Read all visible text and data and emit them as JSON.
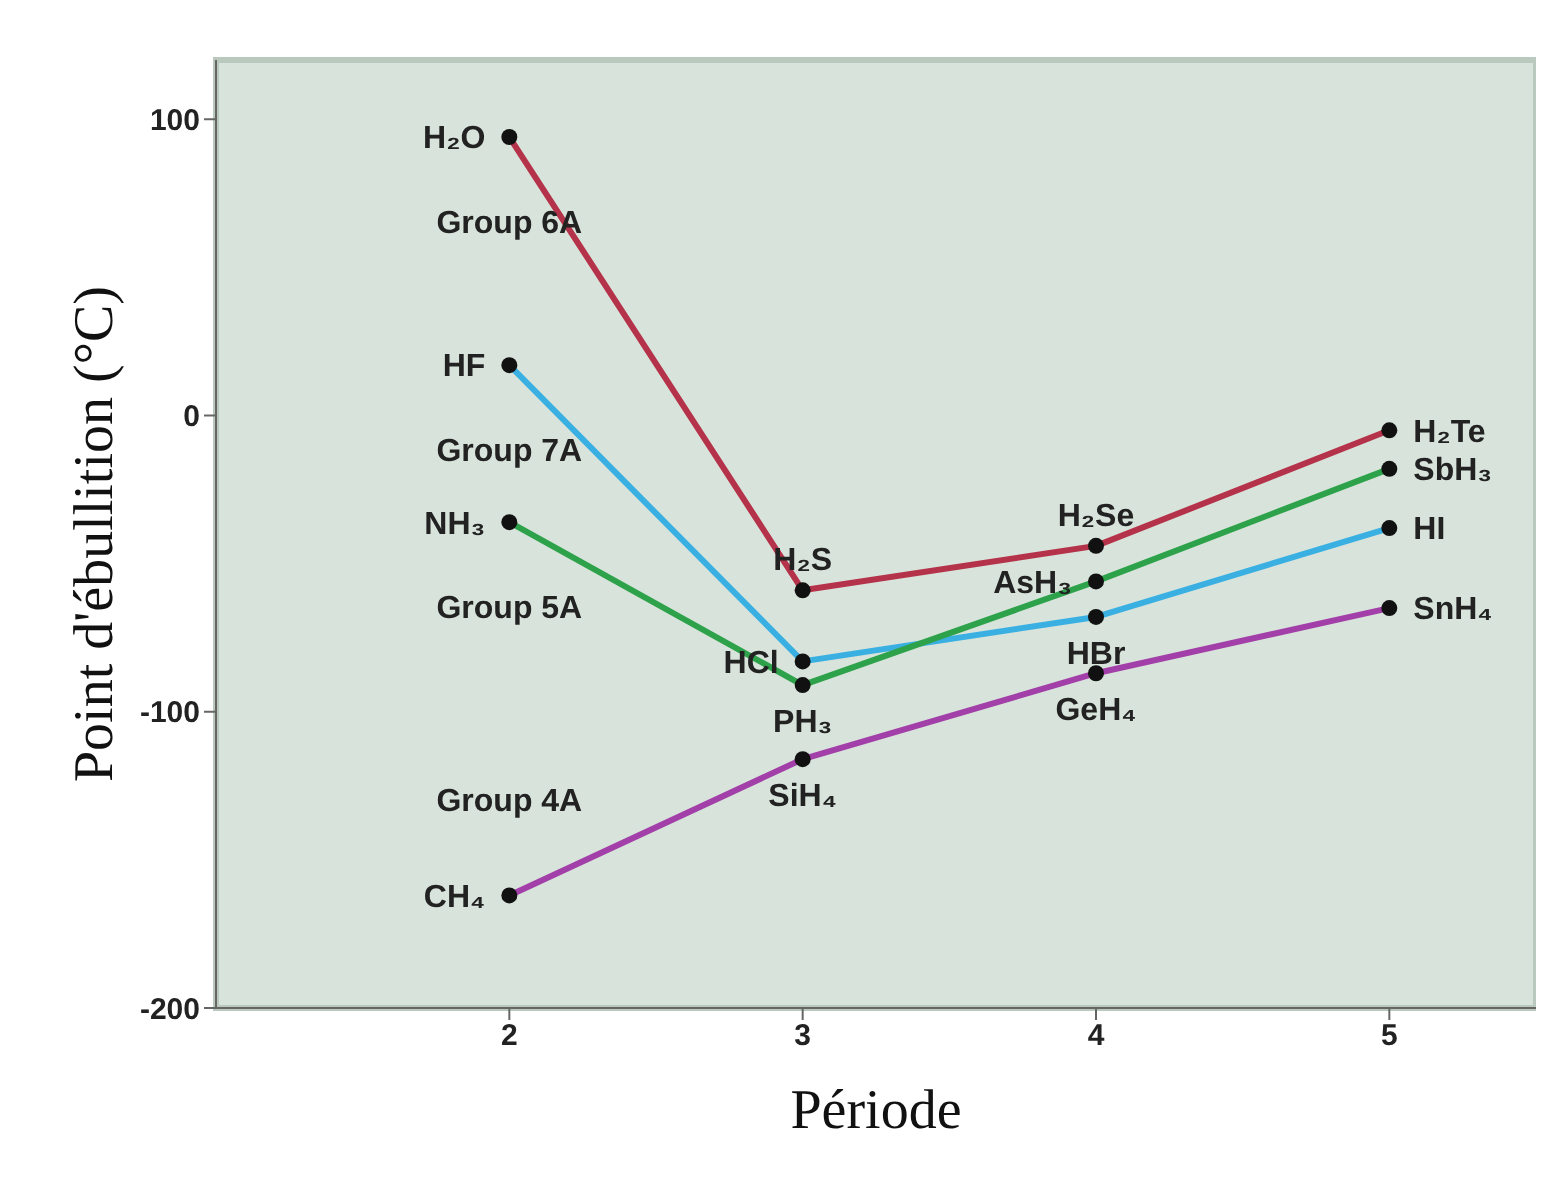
{
  "chart_data": {
    "type": "line",
    "xlabel": "Période",
    "ylabel": "Point d'ébullition (°C)",
    "xlim": [
      1,
      5.5
    ],
    "xticks": [
      2,
      3,
      4,
      5
    ],
    "ylim": [
      -200,
      120
    ],
    "yticks": [
      -200,
      -100,
      0,
      100
    ],
    "x": [
      2,
      3,
      4,
      5
    ],
    "marker": "circle",
    "legend": false,
    "series": [
      {
        "name": "Group 6A",
        "color": "#b5334a",
        "values": [
          94,
          -59,
          -44,
          -5
        ]
      },
      {
        "name": "Group 7A",
        "color": "#3ab0e2",
        "values": [
          17,
          -83,
          -68,
          -38
        ]
      },
      {
        "name": "Group 5A",
        "color": "#2ea24a",
        "values": [
          -36,
          -91,
          -56,
          -18
        ]
      },
      {
        "name": "Group 4A",
        "color": "#a23fa8",
        "values": [
          -162,
          -116,
          -87,
          -65
        ]
      }
    ],
    "annotations": [
      {
        "text": "H₂O",
        "x": 2,
        "y": 94
      },
      {
        "text": "HF",
        "x": 2,
        "y": 17
      },
      {
        "text": "NH₃",
        "x": 2,
        "y": -36
      },
      {
        "text": "CH₄",
        "x": 2,
        "y": -162
      },
      {
        "text": "H₂S",
        "x": 3,
        "y": -59
      },
      {
        "text": "HCl",
        "x": 3,
        "y": -83
      },
      {
        "text": "PH₃",
        "x": 3,
        "y": -91
      },
      {
        "text": "SiH₄",
        "x": 3,
        "y": -116
      },
      {
        "text": "H₂Se",
        "x": 4,
        "y": -44
      },
      {
        "text": "AsH₃",
        "x": 4,
        "y": -56
      },
      {
        "text": "HBr",
        "x": 4,
        "y": -68
      },
      {
        "text": "GeH₄",
        "x": 4,
        "y": -87
      },
      {
        "text": "H₂Te",
        "x": 5,
        "y": -5
      },
      {
        "text": "SbH₃",
        "x": 5,
        "y": -18
      },
      {
        "text": "HI",
        "x": 5,
        "y": -38
      },
      {
        "text": "SnH₄",
        "x": 5,
        "y": -65
      }
    ]
  }
}
